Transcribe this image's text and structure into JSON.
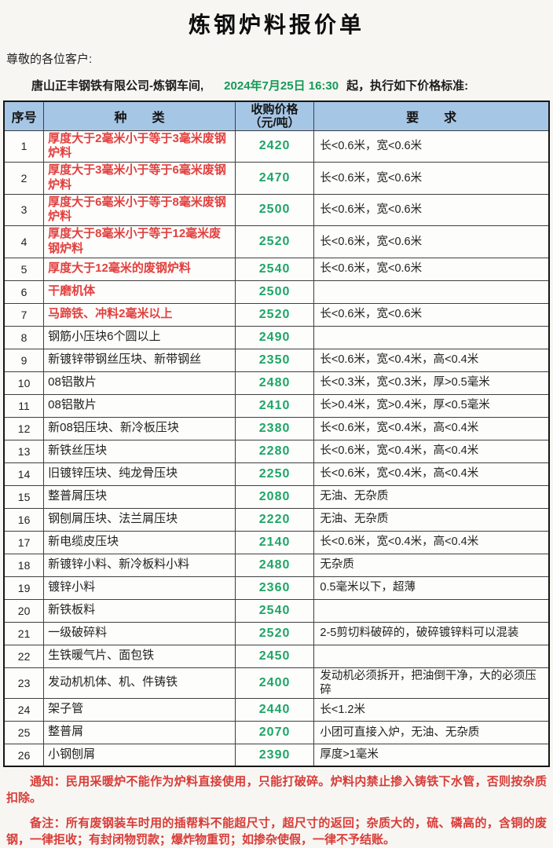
{
  "header": {
    "title": "炼钢炉料报价单",
    "greeting": "尊敬的各位客户:",
    "company": "唐山正丰钢铁有限公司-炼钢车间,",
    "effective_datetime": "2024年7月25日 16:30",
    "effective_suffix": "起，执行如下价格标准:"
  },
  "table": {
    "columns": {
      "index": "序号",
      "kind": "种　　类",
      "price_line1": "收购价格",
      "price_line2": "（元/吨）",
      "requirement": "要　　求"
    },
    "rows": [
      {
        "no": "1",
        "kind": "厚度大于2毫米小于等于3毫米废钢炉料",
        "price": "2420",
        "req": "长<0.6米，宽<0.6米",
        "highlight": true
      },
      {
        "no": "2",
        "kind": "厚度大于3毫米小于等于6毫米废钢炉料",
        "price": "2470",
        "req": "长<0.6米，宽<0.6米",
        "highlight": true
      },
      {
        "no": "3",
        "kind": "厚度大于6毫米小于等于8毫米废钢炉料",
        "price": "2500",
        "req": "长<0.6米，宽<0.6米",
        "highlight": true
      },
      {
        "no": "4",
        "kind": "厚度大于8毫米小于等于12毫米废钢炉料",
        "price": "2520",
        "req": "长<0.6米，宽<0.6米",
        "highlight": true
      },
      {
        "no": "5",
        "kind": "厚度大于12毫米的废钢炉料",
        "price": "2540",
        "req": "长<0.6米，宽<0.6米",
        "highlight": true
      },
      {
        "no": "6",
        "kind": "干磨机体",
        "price": "2500",
        "req": "",
        "highlight": true
      },
      {
        "no": "7",
        "kind": "马蹄铁、冲料2毫米以上",
        "price": "2520",
        "req": "长<0.6米，宽<0.6米",
        "highlight": true
      },
      {
        "no": "8",
        "kind": "钢筋小压块6个圆以上",
        "price": "2490",
        "req": "",
        "highlight": false
      },
      {
        "no": "9",
        "kind": "新镀锌带钢丝压块、新带钢丝",
        "price": "2350",
        "req": "长<0.6米，宽<0.4米，高<0.4米",
        "highlight": false
      },
      {
        "no": "10",
        "kind": "08铝散片",
        "price": "2480",
        "req": "长<0.3米，宽<0.3米，厚>0.5毫米",
        "highlight": false
      },
      {
        "no": "11",
        "kind": "08铝散片",
        "price": "2410",
        "req": "长>0.4米，宽>0.4米，厚<0.5毫米",
        "highlight": false
      },
      {
        "no": "12",
        "kind": "新08铝压块、新冷板压块",
        "price": "2380",
        "req": "长<0.6米，宽<0.4米，高<0.4米",
        "highlight": false
      },
      {
        "no": "13",
        "kind": "新铁丝压块",
        "price": "2280",
        "req": "长<0.6米，宽<0.4米，高<0.4米",
        "highlight": false
      },
      {
        "no": "14",
        "kind": "旧镀锌压块、纯龙骨压块",
        "price": "2250",
        "req": "长<0.6米，宽<0.4米，高<0.4米",
        "highlight": false
      },
      {
        "no": "15",
        "kind": "整普屑压块",
        "price": "2080",
        "req": "无油、无杂质",
        "highlight": false
      },
      {
        "no": "16",
        "kind": "钢刨屑压块、法兰屑压块",
        "price": "2220",
        "req": "无油、无杂质",
        "highlight": false
      },
      {
        "no": "17",
        "kind": "新电缆皮压块",
        "price": "2140",
        "req": "长<0.6米，宽<0.4米，高<0.4米",
        "highlight": false
      },
      {
        "no": "18",
        "kind": "新镀锌小料、新冷板料小料",
        "price": "2480",
        "req": "无杂质",
        "highlight": false
      },
      {
        "no": "19",
        "kind": "镀锌小料",
        "price": "2360",
        "req": "0.5毫米以下，超薄",
        "highlight": false
      },
      {
        "no": "20",
        "kind": "新铁板料",
        "price": "2540",
        "req": "",
        "highlight": false
      },
      {
        "no": "21",
        "kind": "一级破碎料",
        "price": "2520",
        "req": "2-5剪切料破碎的，破碎镀锌料可以混装",
        "highlight": false
      },
      {
        "no": "22",
        "kind": "生铁暖气片、面包铁",
        "price": "2450",
        "req": "",
        "highlight": false
      },
      {
        "no": "23",
        "kind": "发动机机体、机、件铸铁",
        "price": "2400",
        "req": "发动机必须拆开，把油倒干净，大的必须压碎",
        "highlight": false
      },
      {
        "no": "24",
        "kind": "架子管",
        "price": "2440",
        "req": "长<1.2米",
        "highlight": false
      },
      {
        "no": "25",
        "kind": "整普屑",
        "price": "2070",
        "req": "小团可直接入炉，无油、无杂质",
        "highlight": false
      },
      {
        "no": "26",
        "kind": "小钢刨屑",
        "price": "2390",
        "req": "厚度>1毫米",
        "highlight": false
      }
    ]
  },
  "notes": {
    "notice": "通知：民用采暖炉不能作为炉料直接使用，只能打破碎。炉料内禁止掺入铸铁下水管，否则按杂质扣除。",
    "remark": "备注：所有废钢装车时用的插帮料不能超尺寸，超尺寸的返回；杂质大的，硫、磷高的，含铜的废钢，一律拒收；有封闭物罚款；爆炸物重罚；如掺杂使假，一律不予结账。"
  },
  "colors": {
    "header_bg": "#a6c6e5",
    "kind_red": "#e2403e",
    "price_green": "#1fa566",
    "date_green": "#159a58",
    "note_red": "#d93c38"
  }
}
